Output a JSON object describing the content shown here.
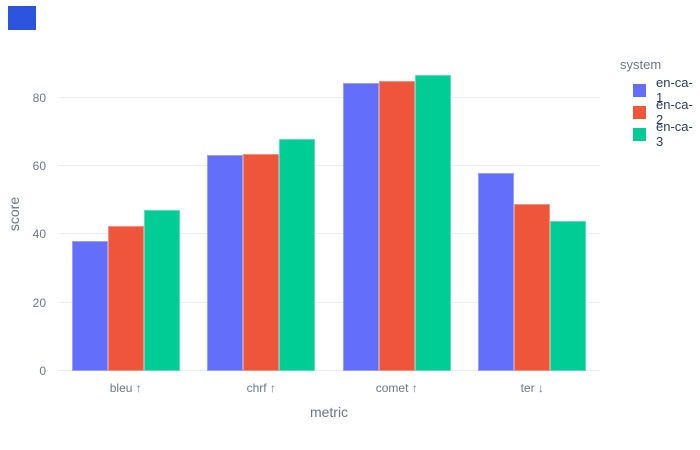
{
  "overlay": {
    "color": "#2B55DF"
  },
  "chart_data": {
    "type": "bar",
    "title": "",
    "xlabel": "metric",
    "ylabel": "score",
    "categories": [
      "bleu ↑",
      "chrf ↑",
      "comet ↑",
      "ter ↓"
    ],
    "series": [
      {
        "name": "en-ca-1",
        "color": "#636EFA",
        "values": [
          38.0,
          63.1,
          84.3,
          57.9
        ]
      },
      {
        "name": "en-ca-2",
        "color": "#EF553B",
        "values": [
          42.4,
          63.5,
          84.8,
          49.0
        ]
      },
      {
        "name": "en-ca-3",
        "color": "#00CC96",
        "values": [
          47.2,
          67.9,
          86.6,
          43.8
        ]
      }
    ],
    "legend": {
      "title": "system",
      "position": "right",
      "entries": [
        "en-ca-1",
        "en-ca-2",
        "en-ca-3"
      ]
    },
    "yticks": [
      0,
      20,
      40,
      60,
      80
    ],
    "ylim": [
      0,
      91
    ],
    "grid": true,
    "bargap": 0.2,
    "colors": {
      "gridline": "#EBEDF4",
      "axis_text": "#6e7687",
      "legend_text": "#2a3f5f",
      "background": "#ffffff"
    }
  }
}
